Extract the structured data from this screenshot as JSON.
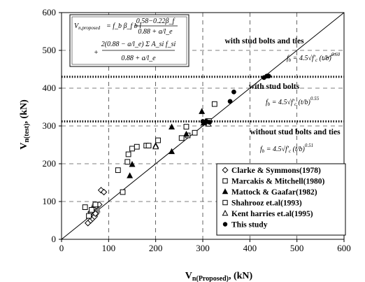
{
  "chart_data": {
    "type": "scatter",
    "xlabel": "V",
    "xlabel_sub": "n(Proposed)",
    "xlabel_unit": ", (kN)",
    "ylabel": "V",
    "ylabel_sub": "n(test)",
    "ylabel_unit": ", (kN)",
    "xlim": [
      0,
      600
    ],
    "ylim": [
      0,
      600
    ],
    "xticks": [
      0,
      100,
      200,
      300,
      400,
      500,
      600
    ],
    "yticks": [
      0,
      100,
      200,
      300,
      400,
      500,
      600
    ],
    "grid": "dashed",
    "legend_position": "bottom-right",
    "reference_line": {
      "x": [
        0,
        600
      ],
      "y": [
        0,
        600
      ]
    },
    "threshold_lines": [
      {
        "y": 430,
        "style": "dotted",
        "label": "with stud bolts and ties",
        "eq_coef": "4.5",
        "eq_exp": "0.60"
      },
      {
        "y": 312,
        "style": "dotted",
        "label": "with stud bolts",
        "eq_coef": "4.5",
        "eq_exp": "0.55"
      },
      {
        "y": 312,
        "style": "none",
        "label": "without stud bolts and ties",
        "eq_coef": "4.5",
        "eq_exp": "0.51"
      }
    ],
    "equation_box": {
      "lhs": "V",
      "lhs_sub": "n,proposed",
      "term1": "= f_b β_f b l",
      "frac1_num": "0.58−0.22β_f",
      "frac1_den": "0.88 + a/l_e",
      "frac2_num": "2(0.88 − a/l_e) Σ A_si f_si",
      "frac2_den": "0.88 + a/l_e",
      "plus": "+"
    },
    "series": [
      {
        "name": "Clarke & Symmons(1978)",
        "marker": "diamond-open",
        "color": "#000000",
        "points": [
          [
            56,
            43
          ],
          [
            62,
            50
          ],
          [
            66,
            55
          ],
          [
            70,
            60
          ],
          [
            62,
            72
          ],
          [
            68,
            82
          ],
          [
            74,
            88
          ],
          [
            80,
            92
          ],
          [
            72,
            68
          ],
          [
            84,
            130
          ],
          [
            90,
            125
          ]
        ]
      },
      {
        "name": "Marcakis & Mitchell(1980)",
        "marker": "square-open",
        "color": "#000000",
        "points": [
          [
            50,
            85
          ],
          [
            58,
            62
          ],
          [
            64,
            78
          ],
          [
            72,
            92
          ],
          [
            120,
            183
          ],
          [
            130,
            125
          ],
          [
            140,
            205
          ],
          [
            142,
            225
          ],
          [
            150,
            240
          ],
          [
            160,
            245
          ],
          [
            180,
            248
          ],
          [
            205,
            262
          ],
          [
            265,
            298
          ],
          [
            268,
            275
          ],
          [
            325,
            358
          ],
          [
            313,
            313
          ]
        ]
      },
      {
        "name": "Mattock & Gaafar(1982)",
        "marker": "triangle-filled",
        "color": "#000000",
        "points": [
          [
            145,
            168
          ],
          [
            150,
            198
          ],
          [
            200,
            248
          ],
          [
            234,
            232
          ],
          [
            234,
            297
          ],
          [
            265,
            278
          ],
          [
            298,
            338
          ],
          [
            302,
            308
          ],
          [
            306,
            312
          ]
        ]
      },
      {
        "name": "Shahrooz et.al(1993)",
        "marker": "square-open",
        "color": "#000000",
        "points": [
          [
            185,
            248
          ],
          [
            255,
            268
          ],
          [
            283,
            282
          ]
        ]
      },
      {
        "name": "Kent harries et.al(1995)",
        "marker": "triangle-open",
        "color": "#000000",
        "points": [
          [
            200,
            245
          ],
          [
            312,
            305
          ]
        ]
      },
      {
        "name": "This study",
        "marker": "circle-filled",
        "color": "#000000",
        "points": [
          [
            300,
            312
          ],
          [
            308,
            312
          ],
          [
            314,
            310
          ],
          [
            358,
            365
          ],
          [
            366,
            390
          ],
          [
            430,
            428
          ],
          [
            436,
            432
          ],
          [
            440,
            432
          ]
        ]
      }
    ],
    "cluster_patch": {
      "color": "#9a9a9a",
      "points": [
        [
          52,
          55
        ],
        [
          58,
          70
        ],
        [
          66,
          95
        ],
        [
          78,
          90
        ],
        [
          82,
          72
        ],
        [
          74,
          58
        ],
        [
          64,
          55
        ]
      ]
    }
  }
}
